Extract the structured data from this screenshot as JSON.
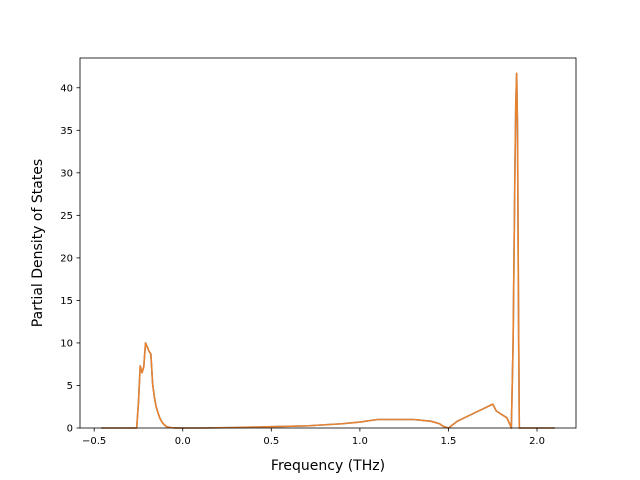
{
  "chart_data": {
    "type": "line",
    "title": "",
    "xlabel": "Frequency (THz)",
    "ylabel": "Partial Density of States",
    "xlim": [
      -0.58,
      2.22
    ],
    "ylim": [
      0,
      43.5
    ],
    "xticks": [
      -0.5,
      0.0,
      0.5,
      1.0,
      1.5,
      2.0
    ],
    "xtick_labels": [
      "−0.5",
      "0.0",
      "0.5",
      "1.0",
      "1.5",
      "2.0"
    ],
    "yticks": [
      0,
      5,
      10,
      15,
      20,
      25,
      30,
      35,
      40
    ],
    "ytick_labels": [
      "0",
      "5",
      "10",
      "15",
      "20",
      "25",
      "30",
      "35",
      "40"
    ],
    "grid": false,
    "legend": "none",
    "series": [
      {
        "color": "#5b8fc7",
        "x": [
          -0.46,
          -0.26,
          -0.25,
          -0.24,
          -0.23,
          -0.22,
          -0.21,
          -0.2,
          -0.19,
          -0.18,
          -0.17,
          -0.16,
          -0.15,
          -0.14,
          -0.13,
          -0.12,
          -0.11,
          -0.1,
          -0.09,
          -0.08,
          -0.07,
          -0.06,
          -0.05,
          -0.04,
          -0.03,
          -0.02,
          -0.01,
          0.0,
          0.1,
          0.3,
          0.5,
          0.7,
          0.9,
          1.0,
          1.05,
          1.1,
          1.2,
          1.3,
          1.4,
          1.45,
          1.47,
          1.5,
          1.55,
          1.6,
          1.65,
          1.7,
          1.74,
          1.75,
          1.77,
          1.8,
          1.83,
          1.845,
          1.855,
          1.865,
          1.875,
          1.88,
          1.885,
          1.89,
          1.895,
          1.9,
          1.95,
          2.1
        ],
        "y": [
          0,
          0,
          3.0,
          7.3,
          6.5,
          7.2,
          10.0,
          9.5,
          9.0,
          8.7,
          5.2,
          3.6,
          2.5,
          1.8,
          1.2,
          0.8,
          0.5,
          0.3,
          0.15,
          0.1,
          0.05,
          0.03,
          0.02,
          0.01,
          0.01,
          0.0,
          0.0,
          0.0,
          0.0,
          0.05,
          0.15,
          0.25,
          0.5,
          0.7,
          0.85,
          1.0,
          1.0,
          1.0,
          0.8,
          0.5,
          0.2,
          0.0,
          0.8,
          1.3,
          1.8,
          2.3,
          2.7,
          2.8,
          2.0,
          1.6,
          1.2,
          0.5,
          0.0,
          10.0,
          30.0,
          38.0,
          41.7,
          35.0,
          15.0,
          0.0,
          0.0,
          0.0
        ]
      },
      {
        "color": "#e8822e",
        "x": [
          -0.46,
          -0.26,
          -0.25,
          -0.24,
          -0.23,
          -0.22,
          -0.21,
          -0.2,
          -0.19,
          -0.18,
          -0.17,
          -0.16,
          -0.15,
          -0.14,
          -0.13,
          -0.12,
          -0.11,
          -0.1,
          -0.09,
          -0.08,
          -0.07,
          -0.06,
          -0.05,
          -0.04,
          -0.03,
          -0.02,
          -0.01,
          0.0,
          0.1,
          0.3,
          0.5,
          0.7,
          0.9,
          1.0,
          1.05,
          1.1,
          1.2,
          1.3,
          1.4,
          1.45,
          1.47,
          1.5,
          1.55,
          1.6,
          1.65,
          1.7,
          1.74,
          1.75,
          1.77,
          1.8,
          1.83,
          1.845,
          1.855,
          1.865,
          1.875,
          1.88,
          1.885,
          1.89,
          1.895,
          1.9,
          1.95,
          2.1
        ],
        "y": [
          0,
          0,
          3.0,
          7.3,
          6.5,
          7.2,
          10.0,
          9.5,
          9.0,
          8.7,
          5.2,
          3.6,
          2.5,
          1.8,
          1.2,
          0.8,
          0.5,
          0.3,
          0.15,
          0.1,
          0.05,
          0.03,
          0.02,
          0.01,
          0.01,
          0.0,
          0.0,
          0.0,
          0.0,
          0.05,
          0.15,
          0.25,
          0.5,
          0.7,
          0.85,
          1.0,
          1.0,
          1.0,
          0.8,
          0.5,
          0.2,
          0.0,
          0.8,
          1.3,
          1.8,
          2.3,
          2.7,
          2.8,
          2.0,
          1.6,
          1.2,
          0.5,
          0.0,
          10.0,
          30.0,
          38.0,
          41.7,
          35.0,
          15.0,
          0.0,
          0.0,
          0.0
        ]
      }
    ]
  }
}
